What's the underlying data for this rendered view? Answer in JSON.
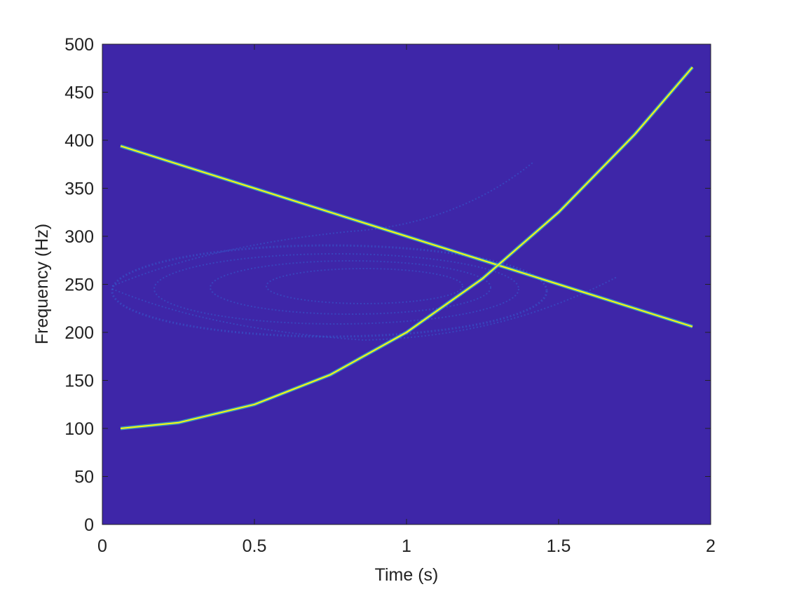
{
  "chart_data": {
    "type": "line",
    "x_label": "Time (s)",
    "y_label": "Frequency (Hz)",
    "x": [
      0.06,
      0.25,
      0.5,
      0.75,
      1,
      1.25,
      1.5,
      1.75,
      1.94
    ],
    "series": [
      {
        "color": "#f9fb0e",
        "values": [
          394,
          375,
          350,
          325,
          300,
          275,
          250,
          225,
          206
        ]
      },
      {
        "color": "#f9fb0e",
        "values": [
          100,
          106,
          125,
          156,
          200,
          256,
          325,
          406,
          476
        ]
      }
    ],
    "background": "#3e26a8",
    "xlim": [
      0,
      2
    ],
    "xticks": [
      0,
      0.5,
      1,
      1.5,
      2
    ],
    "ylim": [
      0,
      500
    ],
    "yticks": [
      0,
      50,
      100,
      150,
      200,
      250,
      300,
      350,
      400,
      450,
      500
    ]
  }
}
